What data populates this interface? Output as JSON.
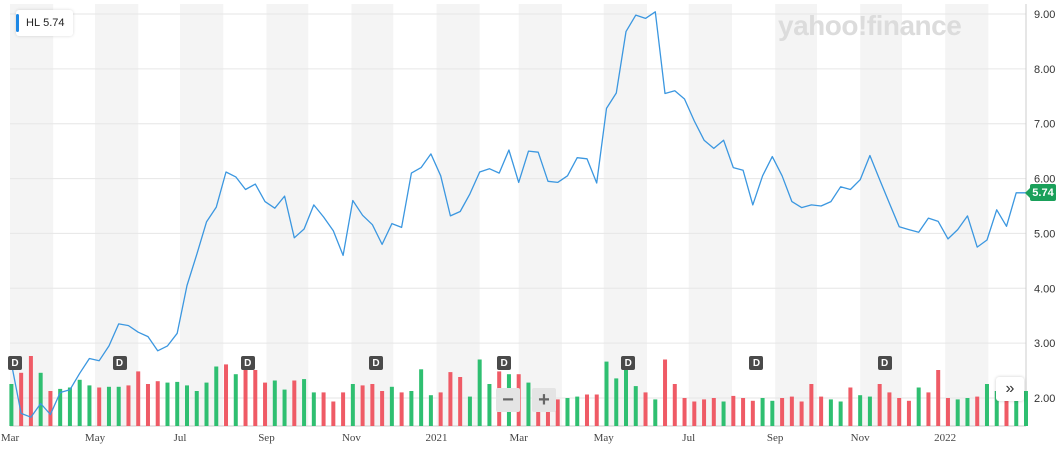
{
  "legend": {
    "ticker": "HL",
    "price": "5.74",
    "accent": "#1e88e5"
  },
  "brand": {
    "text": "yahoo!finance"
  },
  "colors": {
    "line": "#3b97e0",
    "up": "#2fbf71",
    "down": "#ef5b66",
    "badge": "#1aa05a",
    "band": "#f4f4f4"
  },
  "last_badge": "5.74",
  "dividend_label": "D",
  "controls": {
    "zoom_out": "−",
    "zoom_in": "+",
    "scroll": "»"
  },
  "chart_data": {
    "type": "line",
    "ticker": "HL",
    "yaxis_position": "right",
    "ylim": [
      1.5,
      9.0
    ],
    "yticks": [
      "2.00",
      "3.00",
      "4.00",
      "5.00",
      "6.00",
      "7.00",
      "8.00",
      "9.00"
    ],
    "x_tick_labels": [
      "Mar",
      "May",
      "Jul",
      "Sep",
      "Nov",
      "2021",
      "Mar",
      "May",
      "Jul",
      "Sep",
      "Nov",
      "2022"
    ],
    "x_start": "2020-03-01",
    "x_end": "2022-02-28",
    "alternating_month_bands": true,
    "last_price": 5.74,
    "series": [
      {
        "x": [
          "2020-03-02",
          "2020-03-09",
          "2020-03-16",
          "2020-03-23",
          "2020-03-30",
          "2020-04-06",
          "2020-04-13",
          "2020-04-20",
          "2020-04-27",
          "2020-05-04",
          "2020-05-11",
          "2020-05-18",
          "2020-05-25",
          "2020-06-01",
          "2020-06-08",
          "2020-06-15",
          "2020-06-22",
          "2020-06-29",
          "2020-07-06",
          "2020-07-13",
          "2020-07-20",
          "2020-07-27",
          "2020-08-03",
          "2020-08-10",
          "2020-08-17",
          "2020-08-24",
          "2020-08-31",
          "2020-09-07",
          "2020-09-14",
          "2020-09-21",
          "2020-09-28",
          "2020-10-05",
          "2020-10-12",
          "2020-10-19",
          "2020-10-26",
          "2020-11-02",
          "2020-11-09",
          "2020-11-16",
          "2020-11-23",
          "2020-11-30",
          "2020-12-07",
          "2020-12-14",
          "2020-12-21",
          "2020-12-28",
          "2021-01-04",
          "2021-01-11",
          "2021-01-18",
          "2021-01-25",
          "2021-02-01",
          "2021-02-08",
          "2021-02-15",
          "2021-02-22",
          "2021-03-01",
          "2021-03-08",
          "2021-03-15",
          "2021-03-22",
          "2021-03-29",
          "2021-04-05",
          "2021-04-12",
          "2021-04-19",
          "2021-04-26",
          "2021-05-03",
          "2021-05-10",
          "2021-05-17",
          "2021-05-24",
          "2021-05-31",
          "2021-06-07",
          "2021-06-14",
          "2021-06-21",
          "2021-06-28",
          "2021-07-05",
          "2021-07-12",
          "2021-07-19",
          "2021-07-26",
          "2021-08-02",
          "2021-08-09",
          "2021-08-16",
          "2021-08-23",
          "2021-08-30",
          "2021-09-06",
          "2021-09-13",
          "2021-09-20",
          "2021-09-27",
          "2021-10-04",
          "2021-10-11",
          "2021-10-18",
          "2021-10-25",
          "2021-11-01",
          "2021-11-08",
          "2021-11-15",
          "2021-11-22",
          "2021-11-29",
          "2021-12-06",
          "2021-12-13",
          "2021-12-20",
          "2021-12-27",
          "2022-01-03",
          "2022-01-10",
          "2022-01-17",
          "2022-01-24",
          "2022-01-31",
          "2022-02-07",
          "2022-02-14",
          "2022-02-21",
          "2022-02-28"
        ],
        "values": [
          2.63,
          1.72,
          1.65,
          1.9,
          1.7,
          2.1,
          2.15,
          2.45,
          2.72,
          2.68,
          2.95,
          3.35,
          3.32,
          3.2,
          3.12,
          2.86,
          2.95,
          3.18,
          4.05,
          4.62,
          5.21,
          5.48,
          6.12,
          6.03,
          5.8,
          5.9,
          5.58,
          5.46,
          5.68,
          4.92,
          5.08,
          5.52,
          5.3,
          5.05,
          4.6,
          5.6,
          5.33,
          5.16,
          4.8,
          5.18,
          5.11,
          6.1,
          6.2,
          6.45,
          6.05,
          5.32,
          5.4,
          5.72,
          6.12,
          6.18,
          6.1,
          6.52,
          5.93,
          6.5,
          6.48,
          5.95,
          5.93,
          6.05,
          6.38,
          6.36,
          5.92,
          7.28,
          7.56,
          8.68,
          8.98,
          8.92,
          9.04,
          7.55,
          7.6,
          7.45,
          7.05,
          6.7,
          6.55,
          6.7,
          6.2,
          6.15,
          5.52,
          6.05,
          6.4,
          6.05,
          5.58,
          5.47,
          5.52,
          5.5,
          5.58,
          5.85,
          5.8,
          5.98,
          6.42,
          5.98,
          5.55,
          5.12,
          5.07,
          5.02,
          5.28,
          5.22,
          4.9,
          5.07,
          5.32,
          4.75,
          4.88,
          5.43,
          5.13,
          5.74,
          5.74
        ],
        "color": "#3b97e0"
      }
    ],
    "volume": {
      "x_index": [
        0,
        1,
        2,
        3,
        4,
        5,
        6,
        7,
        8,
        9,
        10,
        11,
        12,
        13,
        14,
        15,
        16,
        17,
        18,
        19,
        20,
        21,
        22,
        23,
        24,
        25,
        26,
        27,
        28,
        29,
        30,
        31,
        32,
        33,
        34,
        35,
        36,
        37,
        38,
        39,
        40,
        41,
        42,
        43,
        44,
        45,
        46,
        47,
        48,
        49,
        50,
        51,
        52,
        53,
        54,
        55,
        56,
        57,
        58,
        59,
        60,
        61,
        62,
        63,
        64,
        65,
        66,
        67,
        68,
        69,
        70,
        71,
        72,
        73,
        74,
        75,
        76,
        77,
        78,
        79,
        80,
        81,
        82,
        83,
        84,
        85,
        86,
        87,
        88,
        89,
        90,
        91,
        92,
        93,
        94,
        95,
        96,
        97,
        98,
        99,
        100,
        101,
        102,
        103,
        104
      ],
      "relative": [
        0.6,
        0.76,
        1.0,
        0.76,
        0.5,
        0.53,
        0.55,
        0.66,
        0.58,
        0.55,
        0.56,
        0.56,
        0.58,
        0.78,
        0.6,
        0.64,
        0.62,
        0.63,
        0.58,
        0.5,
        0.62,
        0.85,
        0.88,
        0.74,
        0.81,
        0.8,
        0.62,
        0.65,
        0.52,
        0.65,
        0.67,
        0.48,
        0.48,
        0.35,
        0.48,
        0.6,
        0.58,
        0.6,
        0.5,
        0.56,
        0.48,
        0.5,
        0.81,
        0.44,
        0.48,
        0.77,
        0.7,
        0.42,
        0.95,
        0.6,
        0.78,
        0.74,
        0.74,
        0.62,
        0.34,
        0.3,
        0.38,
        0.4,
        0.42,
        0.45,
        0.45,
        0.92,
        0.68,
        0.8,
        0.57,
        0.48,
        0.38,
        0.95,
        0.6,
        0.4,
        0.35,
        0.38,
        0.4,
        0.35,
        0.43,
        0.4,
        0.36,
        0.4,
        0.36,
        0.4,
        0.42,
        0.35,
        0.6,
        0.42,
        0.38,
        0.35,
        0.55,
        0.44,
        0.42,
        0.6,
        0.48,
        0.4,
        0.36,
        0.55,
        0.48,
        0.8,
        0.4,
        0.38,
        0.4,
        0.42,
        0.6,
        0.5,
        0.55,
        0.42,
        0.5
      ],
      "up": [
        true,
        false,
        false,
        true,
        false,
        true,
        true,
        true,
        true,
        false,
        true,
        true,
        false,
        false,
        false,
        false,
        true,
        true,
        true,
        true,
        true,
        true,
        false,
        true,
        false,
        false,
        false,
        true,
        true,
        false,
        true,
        true,
        false,
        false,
        false,
        true,
        false,
        false,
        false,
        true,
        false,
        true,
        true,
        true,
        false,
        false,
        false,
        true,
        true,
        true,
        false,
        true,
        false,
        true,
        false,
        false,
        false,
        true,
        true,
        false,
        false,
        true,
        true,
        true,
        true,
        false,
        true,
        false,
        false,
        false,
        false,
        false,
        false,
        true,
        false,
        false,
        false,
        true,
        true,
        false,
        false,
        false,
        false,
        false,
        true,
        true,
        false,
        true,
        true,
        false,
        false,
        false,
        false,
        true,
        false,
        false,
        false,
        true,
        true,
        false,
        true,
        true,
        false,
        true,
        true
      ]
    },
    "dividend_dates": [
      "2020-03-01",
      "2020-05-15",
      "2020-08-15",
      "2020-11-15",
      "2021-02-15",
      "2021-05-15",
      "2021-08-15",
      "2021-11-15"
    ]
  }
}
